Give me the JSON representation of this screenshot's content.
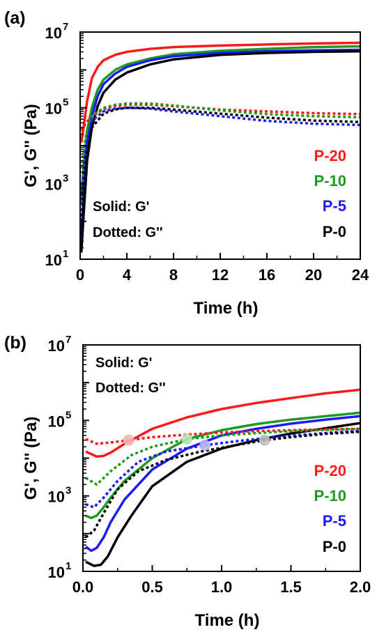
{
  "chart_data": [
    {
      "panel_label": "(a)",
      "type": "line",
      "xlabel": "Time (h)",
      "ylabel": "G', G'' (Pa)",
      "xlim": [
        0,
        24
      ],
      "ylim": [
        10,
        10000000
      ],
      "yscale": "log",
      "x_ticks": [
        "0",
        "4",
        "8",
        "12",
        "16",
        "20",
        "24"
      ],
      "y_ticks": [
        "10",
        "10",
        "10",
        "10"
      ],
      "y_tick_exponents": [
        "1",
        "3",
        "5",
        "7"
      ],
      "annotations": [
        "Solid: G'",
        "Dotted: G''"
      ],
      "legend_labels": [
        "P-20",
        "P-10",
        "P-5",
        "P-0"
      ],
      "series": [
        {
          "name": "P-20",
          "kind": "G'",
          "style": "solid",
          "color": "#ff1a1a",
          "x": [
            0.1,
            0.3,
            0.6,
            1,
            1.5,
            2,
            3,
            4,
            6,
            8,
            12,
            16,
            20,
            24
          ],
          "y": [
            12000,
            30000,
            150000,
            600000,
            1200000,
            1800000,
            2500000,
            3000000,
            3600000,
            4000000,
            4400000,
            4700000,
            5000000,
            5200000
          ]
        },
        {
          "name": "P-10",
          "kind": "G'",
          "style": "solid",
          "color": "#1e9a1e",
          "x": [
            0.1,
            0.3,
            0.6,
            1,
            1.5,
            2,
            3,
            4,
            6,
            8,
            12,
            16,
            20,
            24
          ],
          "y": [
            300,
            3000,
            25000,
            100000,
            300000,
            550000,
            1000000,
            1400000,
            2000000,
            2600000,
            3200000,
            3600000,
            4000000,
            4200000
          ]
        },
        {
          "name": "P-5",
          "kind": "G'",
          "style": "solid",
          "color": "#1a1aff",
          "x": [
            0.1,
            0.3,
            0.6,
            1,
            1.5,
            2,
            3,
            4,
            6,
            8,
            12,
            16,
            20,
            24
          ],
          "y": [
            40,
            500,
            10000,
            60000,
            200000,
            420000,
            800000,
            1200000,
            1800000,
            2300000,
            2800000,
            3100000,
            3300000,
            3400000
          ]
        },
        {
          "name": "P-0",
          "kind": "G'",
          "style": "solid",
          "color": "#000000",
          "x": [
            0.1,
            0.3,
            0.6,
            1,
            1.5,
            2,
            3,
            4,
            6,
            8,
            12,
            16,
            20,
            24
          ],
          "y": [
            15,
            150,
            4000,
            30000,
            110000,
            250000,
            550000,
            850000,
            1400000,
            1900000,
            2500000,
            2800000,
            3000000,
            3100000
          ]
        },
        {
          "name": "P-20",
          "kind": "G''",
          "style": "dotted",
          "color": "#ff1a1a",
          "x": [
            0.1,
            0.5,
            1,
            2,
            3,
            4,
            6,
            8,
            12,
            16,
            20,
            24
          ],
          "y": [
            25000,
            40000,
            60000,
            90000,
            110000,
            120000,
            120000,
            110000,
            90000,
            80000,
            72000,
            68000
          ]
        },
        {
          "name": "P-10",
          "kind": "G''",
          "style": "dotted",
          "color": "#1e9a1e",
          "x": [
            0.1,
            0.5,
            1,
            2,
            3,
            4,
            6,
            8,
            12,
            16,
            20,
            24
          ],
          "y": [
            2500,
            20000,
            60000,
            100000,
            120000,
            130000,
            130000,
            115000,
            85000,
            68000,
            60000,
            56000
          ]
        },
        {
          "name": "P-5",
          "kind": "G''",
          "style": "dotted",
          "color": "#1a1aff",
          "x": [
            0.1,
            0.5,
            1,
            2,
            3,
            4,
            6,
            8,
            12,
            16,
            20,
            24
          ],
          "y": [
            500,
            10000,
            45000,
            80000,
            95000,
            100000,
            95000,
            80000,
            60000,
            45000,
            38000,
            35000
          ]
        },
        {
          "name": "P-0",
          "kind": "G''",
          "style": "dotted",
          "color": "#000000",
          "x": [
            0.1,
            0.5,
            1,
            2,
            3,
            4,
            6,
            8,
            12,
            16,
            20,
            24
          ],
          "y": [
            100,
            5000,
            30000,
            70000,
            90000,
            100000,
            100000,
            90000,
            70000,
            55000,
            46000,
            42000
          ]
        }
      ]
    },
    {
      "panel_label": "(b)",
      "type": "line",
      "xlabel": "Time (h)",
      "ylabel": "G', G'' (Pa)",
      "xlim": [
        0,
        2
      ],
      "ylim": [
        10,
        10000000
      ],
      "yscale": "log",
      "x_ticks": [
        "0.0",
        "0.5",
        "1.0",
        "1.5",
        "2.0"
      ],
      "y_ticks": [
        "10",
        "10",
        "10",
        "10"
      ],
      "y_tick_exponents": [
        "1",
        "3",
        "5",
        "7"
      ],
      "annotations": [
        "Solid: G'",
        "Dotted: G''"
      ],
      "legend_labels": [
        "P-20",
        "P-10",
        "P-5",
        "P-0"
      ],
      "crossover_points": [
        {
          "series": "P-20",
          "x": 0.33,
          "y": 30000,
          "color": "#f5b0b0"
        },
        {
          "series": "P-10",
          "x": 0.75,
          "y": 32000,
          "color": "#b5e3b5"
        },
        {
          "series": "P-5",
          "x": 0.88,
          "y": 22000,
          "color": "#b5b5f5"
        },
        {
          "series": "P-0",
          "x": 1.31,
          "y": 30000,
          "color": "#bdbdbd"
        }
      ],
      "series": [
        {
          "name": "P-20",
          "kind": "G'",
          "style": "solid",
          "color": "#ff1a1a",
          "x": [
            0.02,
            0.1,
            0.15,
            0.2,
            0.3,
            0.5,
            0.75,
            1.0,
            1.25,
            1.5,
            1.75,
            2.0
          ],
          "y": [
            15000,
            11000,
            11500,
            14000,
            24000,
            60000,
            120000,
            200000,
            290000,
            390000,
            520000,
            650000
          ]
        },
        {
          "name": "P-10",
          "kind": "G'",
          "style": "solid",
          "color": "#1e9a1e",
          "x": [
            0.02,
            0.06,
            0.1,
            0.15,
            0.2,
            0.3,
            0.5,
            0.75,
            1.0,
            1.25,
            1.5,
            1.75,
            2.0
          ],
          "y": [
            300,
            260,
            300,
            500,
            900,
            2500,
            10000,
            32000,
            55000,
            80000,
            105000,
            130000,
            160000
          ]
        },
        {
          "name": "P-5",
          "kind": "G'",
          "style": "solid",
          "color": "#1a1aff",
          "x": [
            0.02,
            0.06,
            0.1,
            0.15,
            0.2,
            0.3,
            0.5,
            0.75,
            1.0,
            1.25,
            1.5,
            1.75,
            2.0
          ],
          "y": [
            45,
            35,
            42,
            80,
            200,
            800,
            5000,
            18000,
            40000,
            60000,
            82000,
            105000,
            130000
          ]
        },
        {
          "name": "P-0",
          "kind": "G'",
          "style": "solid",
          "color": "#000000",
          "x": [
            0.02,
            0.08,
            0.13,
            0.18,
            0.25,
            0.35,
            0.5,
            0.75,
            1.0,
            1.25,
            1.5,
            1.75,
            2.0
          ],
          "y": [
            18,
            14,
            15,
            25,
            80,
            300,
            1800,
            8000,
            18000,
            30000,
            45000,
            62000,
            85000
          ]
        },
        {
          "name": "P-20",
          "kind": "G''",
          "style": "dotted",
          "color": "#ff1a1a",
          "x": [
            0.02,
            0.1,
            0.2,
            0.33,
            0.5,
            0.75,
            1.0,
            1.25,
            1.5,
            1.75,
            2.0
          ],
          "y": [
            32000,
            24000,
            26000,
            30000,
            36000,
            42000,
            48000,
            52000,
            55000,
            58000,
            60000
          ]
        },
        {
          "name": "P-10",
          "kind": "G''",
          "style": "dotted",
          "color": "#1e9a1e",
          "x": [
            0.02,
            0.1,
            0.2,
            0.35,
            0.5,
            0.75,
            1.0,
            1.25,
            1.5,
            1.75,
            2.0
          ],
          "y": [
            3000,
            2000,
            4500,
            12000,
            20000,
            32000,
            40000,
            46000,
            52000,
            56000,
            60000
          ]
        },
        {
          "name": "P-5",
          "kind": "G''",
          "style": "dotted",
          "color": "#1a1aff",
          "x": [
            0.02,
            0.08,
            0.15,
            0.25,
            0.4,
            0.6,
            0.88,
            1.1,
            1.35,
            1.6,
            1.8,
            2.0
          ],
          "y": [
            600,
            500,
            900,
            2500,
            8000,
            15000,
            22000,
            28000,
            35000,
            42000,
            48000,
            52000
          ]
        },
        {
          "name": "P-0",
          "kind": "G''",
          "style": "dotted",
          "color": "#000000",
          "x": [
            0.02,
            0.08,
            0.15,
            0.25,
            0.4,
            0.6,
            0.85,
            1.1,
            1.31,
            1.5,
            1.75,
            2.0
          ],
          "y": [
            80,
            120,
            350,
            1500,
            4500,
            9000,
            15000,
            22000,
            30000,
            36000,
            44000,
            50000
          ]
        }
      ]
    }
  ]
}
